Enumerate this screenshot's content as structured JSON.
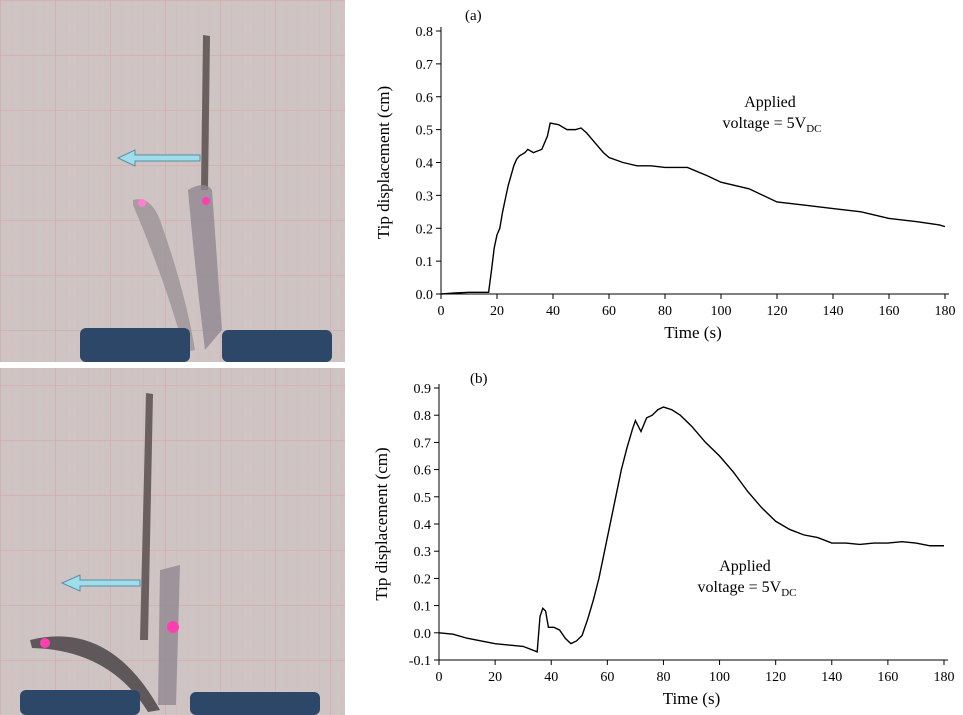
{
  "chart_data": [
    {
      "type": "line",
      "panel_label": "(a)",
      "x_label": "Time (s)",
      "y_label": "Tip displacement (cm)",
      "annotation": {
        "line1": "Applied",
        "line2": "voltage = 5V",
        "subscript": "DC"
      },
      "xlim": [
        0,
        180
      ],
      "xticks": [
        0,
        20,
        40,
        60,
        80,
        100,
        120,
        140,
        160,
        180
      ],
      "ylim": [
        0,
        0.8
      ],
      "yticks": [
        {
          "value": 0,
          "label": "0.0"
        },
        0.1,
        0.2,
        0.3,
        0.4,
        0.5,
        0.6,
        0.7,
        0.8
      ],
      "series": [
        {
          "color": "#000000",
          "x": [
            0,
            5,
            10,
            17,
            18,
            19,
            20,
            21,
            22,
            23,
            24,
            25,
            26,
            27,
            28,
            30,
            31,
            33,
            36,
            38,
            39,
            42,
            45,
            48,
            50,
            52,
            55,
            58,
            60,
            65,
            70,
            75,
            80,
            88,
            95,
            100,
            110,
            120,
            130,
            140,
            150,
            160,
            170,
            178,
            180
          ],
          "values": [
            0.0,
            0.003,
            0.005,
            0.005,
            0.07,
            0.14,
            0.18,
            0.2,
            0.25,
            0.29,
            0.33,
            0.36,
            0.39,
            0.41,
            0.42,
            0.43,
            0.44,
            0.43,
            0.44,
            0.48,
            0.52,
            0.515,
            0.5,
            0.5,
            0.505,
            0.49,
            0.46,
            0.43,
            0.415,
            0.4,
            0.39,
            0.39,
            0.385,
            0.385,
            0.36,
            0.34,
            0.32,
            0.28,
            0.27,
            0.26,
            0.25,
            0.23,
            0.22,
            0.21,
            0.205
          ]
        }
      ]
    },
    {
      "type": "line",
      "panel_label": "(b)",
      "x_label": "Time (s)",
      "y_label": "Tip displacement (cm)",
      "annotation": {
        "line1": "Applied",
        "line2": "voltage = 5V",
        "subscript": "DC"
      },
      "xlim": [
        0,
        180
      ],
      "xticks": [
        0,
        20,
        40,
        60,
        80,
        100,
        120,
        140,
        160,
        180
      ],
      "ylim": [
        -0.1,
        0.9
      ],
      "yticks": [
        -0.1,
        {
          "value": 0,
          "label": "0.0"
        },
        0.1,
        0.2,
        0.3,
        0.4,
        0.5,
        0.6,
        0.7,
        0.8,
        0.9
      ],
      "series": [
        {
          "color": "#000000",
          "x": [
            0,
            5,
            10,
            15,
            20,
            25,
            30,
            35,
            36,
            37,
            38,
            39,
            41,
            43,
            45,
            47,
            49,
            51,
            53,
            55,
            57,
            59,
            61,
            63,
            65,
            67,
            69,
            70,
            72,
            74,
            76,
            78,
            80,
            83,
            86,
            90,
            95,
            100,
            105,
            110,
            115,
            120,
            125,
            130,
            135,
            140,
            145,
            150,
            155,
            160,
            165,
            170,
            175,
            180
          ],
          "values": [
            0.0,
            -0.005,
            -0.02,
            -0.03,
            -0.04,
            -0.045,
            -0.05,
            -0.07,
            0.06,
            0.09,
            0.08,
            0.02,
            0.02,
            0.01,
            -0.02,
            -0.04,
            -0.03,
            -0.01,
            0.05,
            0.12,
            0.2,
            0.3,
            0.4,
            0.5,
            0.6,
            0.68,
            0.75,
            0.78,
            0.74,
            0.79,
            0.8,
            0.82,
            0.83,
            0.82,
            0.8,
            0.76,
            0.7,
            0.65,
            0.59,
            0.52,
            0.46,
            0.41,
            0.38,
            0.36,
            0.35,
            0.33,
            0.33,
            0.325,
            0.33,
            0.33,
            0.335,
            0.33,
            0.32,
            0.32
          ]
        }
      ]
    }
  ]
}
